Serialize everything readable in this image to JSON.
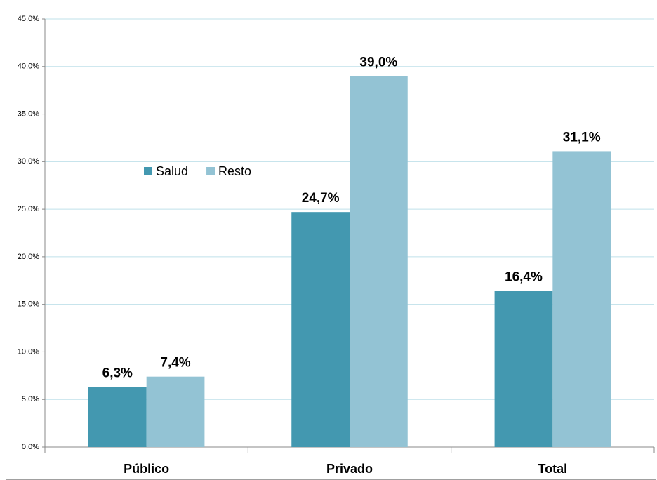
{
  "chart_data": {
    "type": "bar",
    "categories": [
      "Público",
      "Privado",
      "Total"
    ],
    "series": [
      {
        "name": "Salud",
        "color": "#4398b0",
        "values": [
          6.3,
          24.7,
          16.4
        ],
        "value_labels": [
          "6,3%",
          "24,7%",
          "16,4%"
        ]
      },
      {
        "name": "Resto",
        "color": "#93c3d4",
        "values": [
          7.4,
          39.0,
          31.1
        ],
        "value_labels": [
          "7,4%",
          "39,0%",
          "31,1%"
        ]
      }
    ],
    "ylim": [
      0,
      45
    ],
    "yticks": [
      {
        "value": 0,
        "label": "0,0%"
      },
      {
        "value": 5,
        "label": "5,0%"
      },
      {
        "value": 10,
        "label": "10,0%"
      },
      {
        "value": 15,
        "label": "15,0%"
      },
      {
        "value": 20,
        "label": "20,0%"
      },
      {
        "value": 25,
        "label": "25,0%"
      },
      {
        "value": 30,
        "label": "30,0%"
      },
      {
        "value": 35,
        "label": "35,0%"
      },
      {
        "value": 40,
        "label": "40,0%"
      },
      {
        "value": 45,
        "label": "45,0%"
      }
    ],
    "grid": true,
    "legend": "center left"
  }
}
